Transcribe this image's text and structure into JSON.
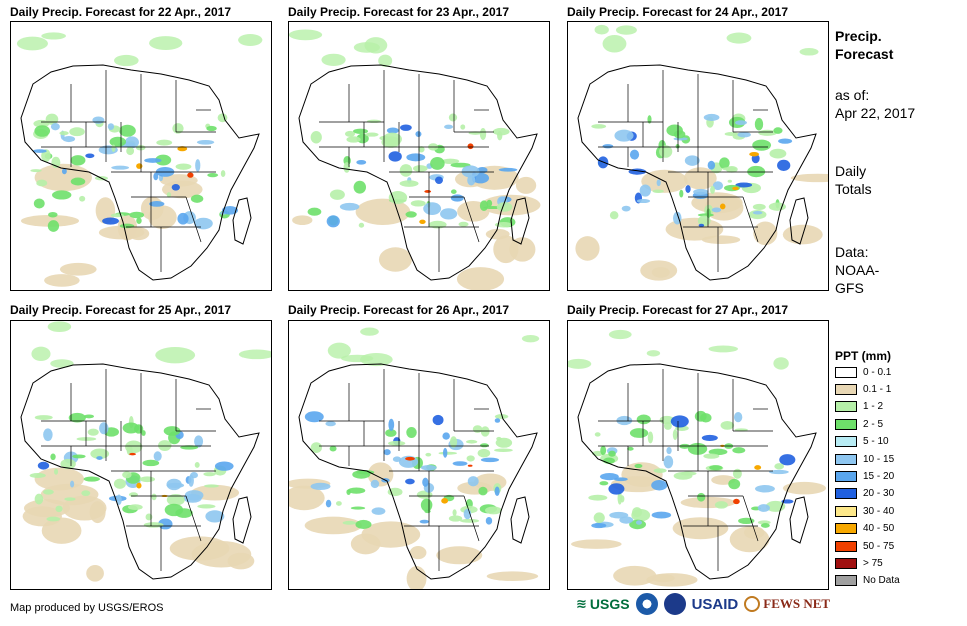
{
  "panels": [
    {
      "title": "Daily Precip. Forecast for 22 Apr., 2017"
    },
    {
      "title": "Daily Precip. Forecast for 23 Apr., 2017"
    },
    {
      "title": "Daily Precip. Forecast for 24 Apr., 2017"
    },
    {
      "title": "Daily Precip. Forecast for 25 Apr., 2017"
    },
    {
      "title": "Daily Precip. Forecast for 26 Apr., 2017"
    },
    {
      "title": "Daily Precip. Forecast for 27 Apr., 2017"
    }
  ],
  "sidebar": {
    "title_line1": "Precip.",
    "title_line2": "Forecast",
    "asof_label": "as of:",
    "asof_date": "Apr 22, 2017",
    "daily_line1": "Daily",
    "daily_line2": "Totals",
    "data_line1": "Data:",
    "data_line2": "NOAA-",
    "data_line3": "GFS"
  },
  "legend": {
    "title": "PPT (mm)",
    "items": [
      {
        "label": "0 - 0.1",
        "color": "#ffffff"
      },
      {
        "label": "0.1 - 1",
        "color": "#e8d7b4"
      },
      {
        "label": "1 - 2",
        "color": "#b6f0a8"
      },
      {
        "label": "2 - 5",
        "color": "#6ee06a"
      },
      {
        "label": "5 - 10",
        "color": "#b8ecf4"
      },
      {
        "label": "10 - 15",
        "color": "#8ec6f0"
      },
      {
        "label": "15 - 20",
        "color": "#5aa6ee"
      },
      {
        "label": "20 - 30",
        "color": "#2060e0"
      },
      {
        "label": "30 - 40",
        "color": "#fde88a"
      },
      {
        "label": "40 - 50",
        "color": "#f7a800"
      },
      {
        "label": "50 - 75",
        "color": "#f04000"
      },
      {
        "label": "> 75",
        "color": "#a01010"
      },
      {
        "label": "No Data",
        "color": "#a0a0a0"
      }
    ]
  },
  "footer": {
    "credit": "Map produced by USGS/EROS",
    "logo_usgs": "USGS",
    "logo_usaid": "USAID",
    "logo_fewsnet": "FEWS NET"
  }
}
